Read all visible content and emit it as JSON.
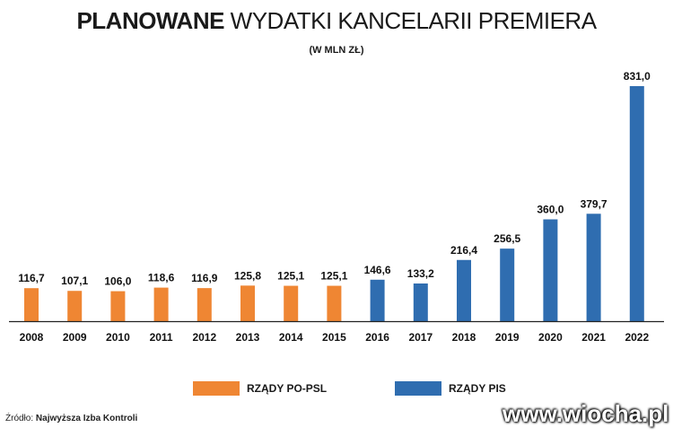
{
  "title_bold": "PLANOWANE",
  "title_light": "WYDATKI KANCELARII PREMIERA",
  "subtitle": "(W MLN ZŁ)",
  "source_prefix": "Źródło:",
  "source_name": "Najwyższa Izba Kontroli",
  "watermark": "www.wiocha.pl",
  "colors": {
    "po_psl": "#ef8633",
    "pis": "#2f6db0",
    "axis": "#222222"
  },
  "chart_data": {
    "type": "bar",
    "categories": [
      "2008",
      "2009",
      "2010",
      "2011",
      "2012",
      "2013",
      "2014",
      "2015",
      "2016",
      "2017",
      "2018",
      "2019",
      "2020",
      "2021",
      "2022"
    ],
    "values": [
      116.7,
      107.1,
      106.0,
      118.6,
      116.9,
      125.8,
      125.1,
      125.1,
      146.6,
      133.2,
      216.4,
      256.5,
      360.0,
      379.7,
      831.0
    ],
    "value_labels": [
      "116,7",
      "107,1",
      "106,0",
      "118,6",
      "116,9",
      "125,8",
      "125,1",
      "125,1",
      "146,6",
      "133,2",
      "216,4",
      "256,5",
      "360,0",
      "379,7",
      "831,0"
    ],
    "groups": [
      "po_psl",
      "po_psl",
      "po_psl",
      "po_psl",
      "po_psl",
      "po_psl",
      "po_psl",
      "po_psl",
      "pis",
      "pis",
      "pis",
      "pis",
      "pis",
      "pis",
      "pis"
    ],
    "series": [
      {
        "name": "RZĄDY PO-PSL",
        "key": "po_psl"
      },
      {
        "name": "RZĄDY PIS",
        "key": "pis"
      }
    ],
    "title": "PLANOWANE WYDATKI KANCELARII PREMIERA",
    "ylabel": "(W MLN ZŁ)",
    "ylim": [
      0,
      831.0
    ],
    "grid": false,
    "legend_position": "bottom"
  }
}
